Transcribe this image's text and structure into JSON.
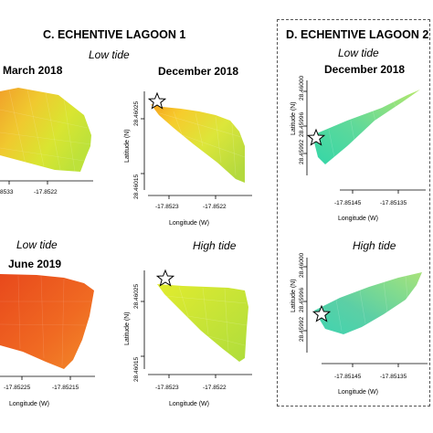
{
  "panel_c": {
    "title": "C. ECHENTIVE LAGOON 1",
    "low_tide_1": "Low tide",
    "low_tide_2": "Low tide",
    "high_tide": "High tide",
    "march": "March 2018",
    "december": "December 2018",
    "june": "June 2019"
  },
  "panel_d": {
    "title": "D. ECHENTIVE LAGOON 2",
    "low_tide": "Low tide",
    "high_tide": "High tide",
    "december": "December 2018"
  },
  "chart_data": [
    {
      "type": "heatmap",
      "panel": "C",
      "period": "March 2018",
      "tide": "Low tide",
      "xlabel": "",
      "ylabel": "",
      "x_ticks": [
        "8533",
        "-17.8522"
      ],
      "y_ticks": [],
      "fill_colors": [
        "#f1a12a",
        "#f0c92f",
        "#d9e531",
        "#bde23a"
      ]
    },
    {
      "type": "heatmap",
      "panel": "C",
      "period": "December 2018",
      "tide": "Low tide",
      "xlabel": "Longitude (W)",
      "ylabel": "Latitude (N)",
      "x_ticks": [
        "-17.8523",
        "-17.8522"
      ],
      "y_ticks": [
        "28.46025",
        "28.46015"
      ],
      "fill_colors": [
        "#f4a21e",
        "#f6cc2c",
        "#dce63a",
        "#b3d93e"
      ]
    },
    {
      "type": "heatmap",
      "panel": "C",
      "period": "June 2019",
      "tide": "Low tide",
      "xlabel": "Longitude (W)",
      "ylabel": "",
      "x_ticks": [
        "-17.85225",
        "-17.85215"
      ],
      "y_ticks": [],
      "fill_colors": [
        "#e8491c",
        "#f06a22",
        "#f28a2a"
      ]
    },
    {
      "type": "heatmap",
      "panel": "C",
      "period": "",
      "tide": "High tide",
      "xlabel": "Longitude (W)",
      "ylabel": "Latitude (N)",
      "x_ticks": [
        "-17.8523",
        "-17.8522"
      ],
      "y_ticks": [
        "28.46025",
        "28.46015"
      ],
      "fill_colors": [
        "#e2ec2e",
        "#c8e436",
        "#aedd3c"
      ]
    },
    {
      "type": "heatmap",
      "panel": "D",
      "period": "December 2018",
      "tide": "Low tide",
      "xlabel": "Longitude (W)",
      "ylabel": "Latitude (N)",
      "x_ticks": [
        "-17.85145",
        "-17.85135"
      ],
      "y_ticks": [
        "28.46000",
        "28.45996",
        "28.45992"
      ],
      "fill_colors": [
        "#34d6a8",
        "#5fd99a",
        "#95e27d",
        "#b6e86a"
      ]
    },
    {
      "type": "heatmap",
      "panel": "D",
      "period": "",
      "tide": "High tide",
      "xlabel": "Longitude (W)",
      "ylabel": "Latitude (N)",
      "x_ticks": [
        "-17.85145",
        "-17.85135"
      ],
      "y_ticks": [
        "28.46000",
        "28.45996",
        "28.45992"
      ],
      "fill_colors": [
        "#3fd4b0",
        "#5ccfa5",
        "#86dc8c",
        "#a9e27a"
      ]
    }
  ]
}
